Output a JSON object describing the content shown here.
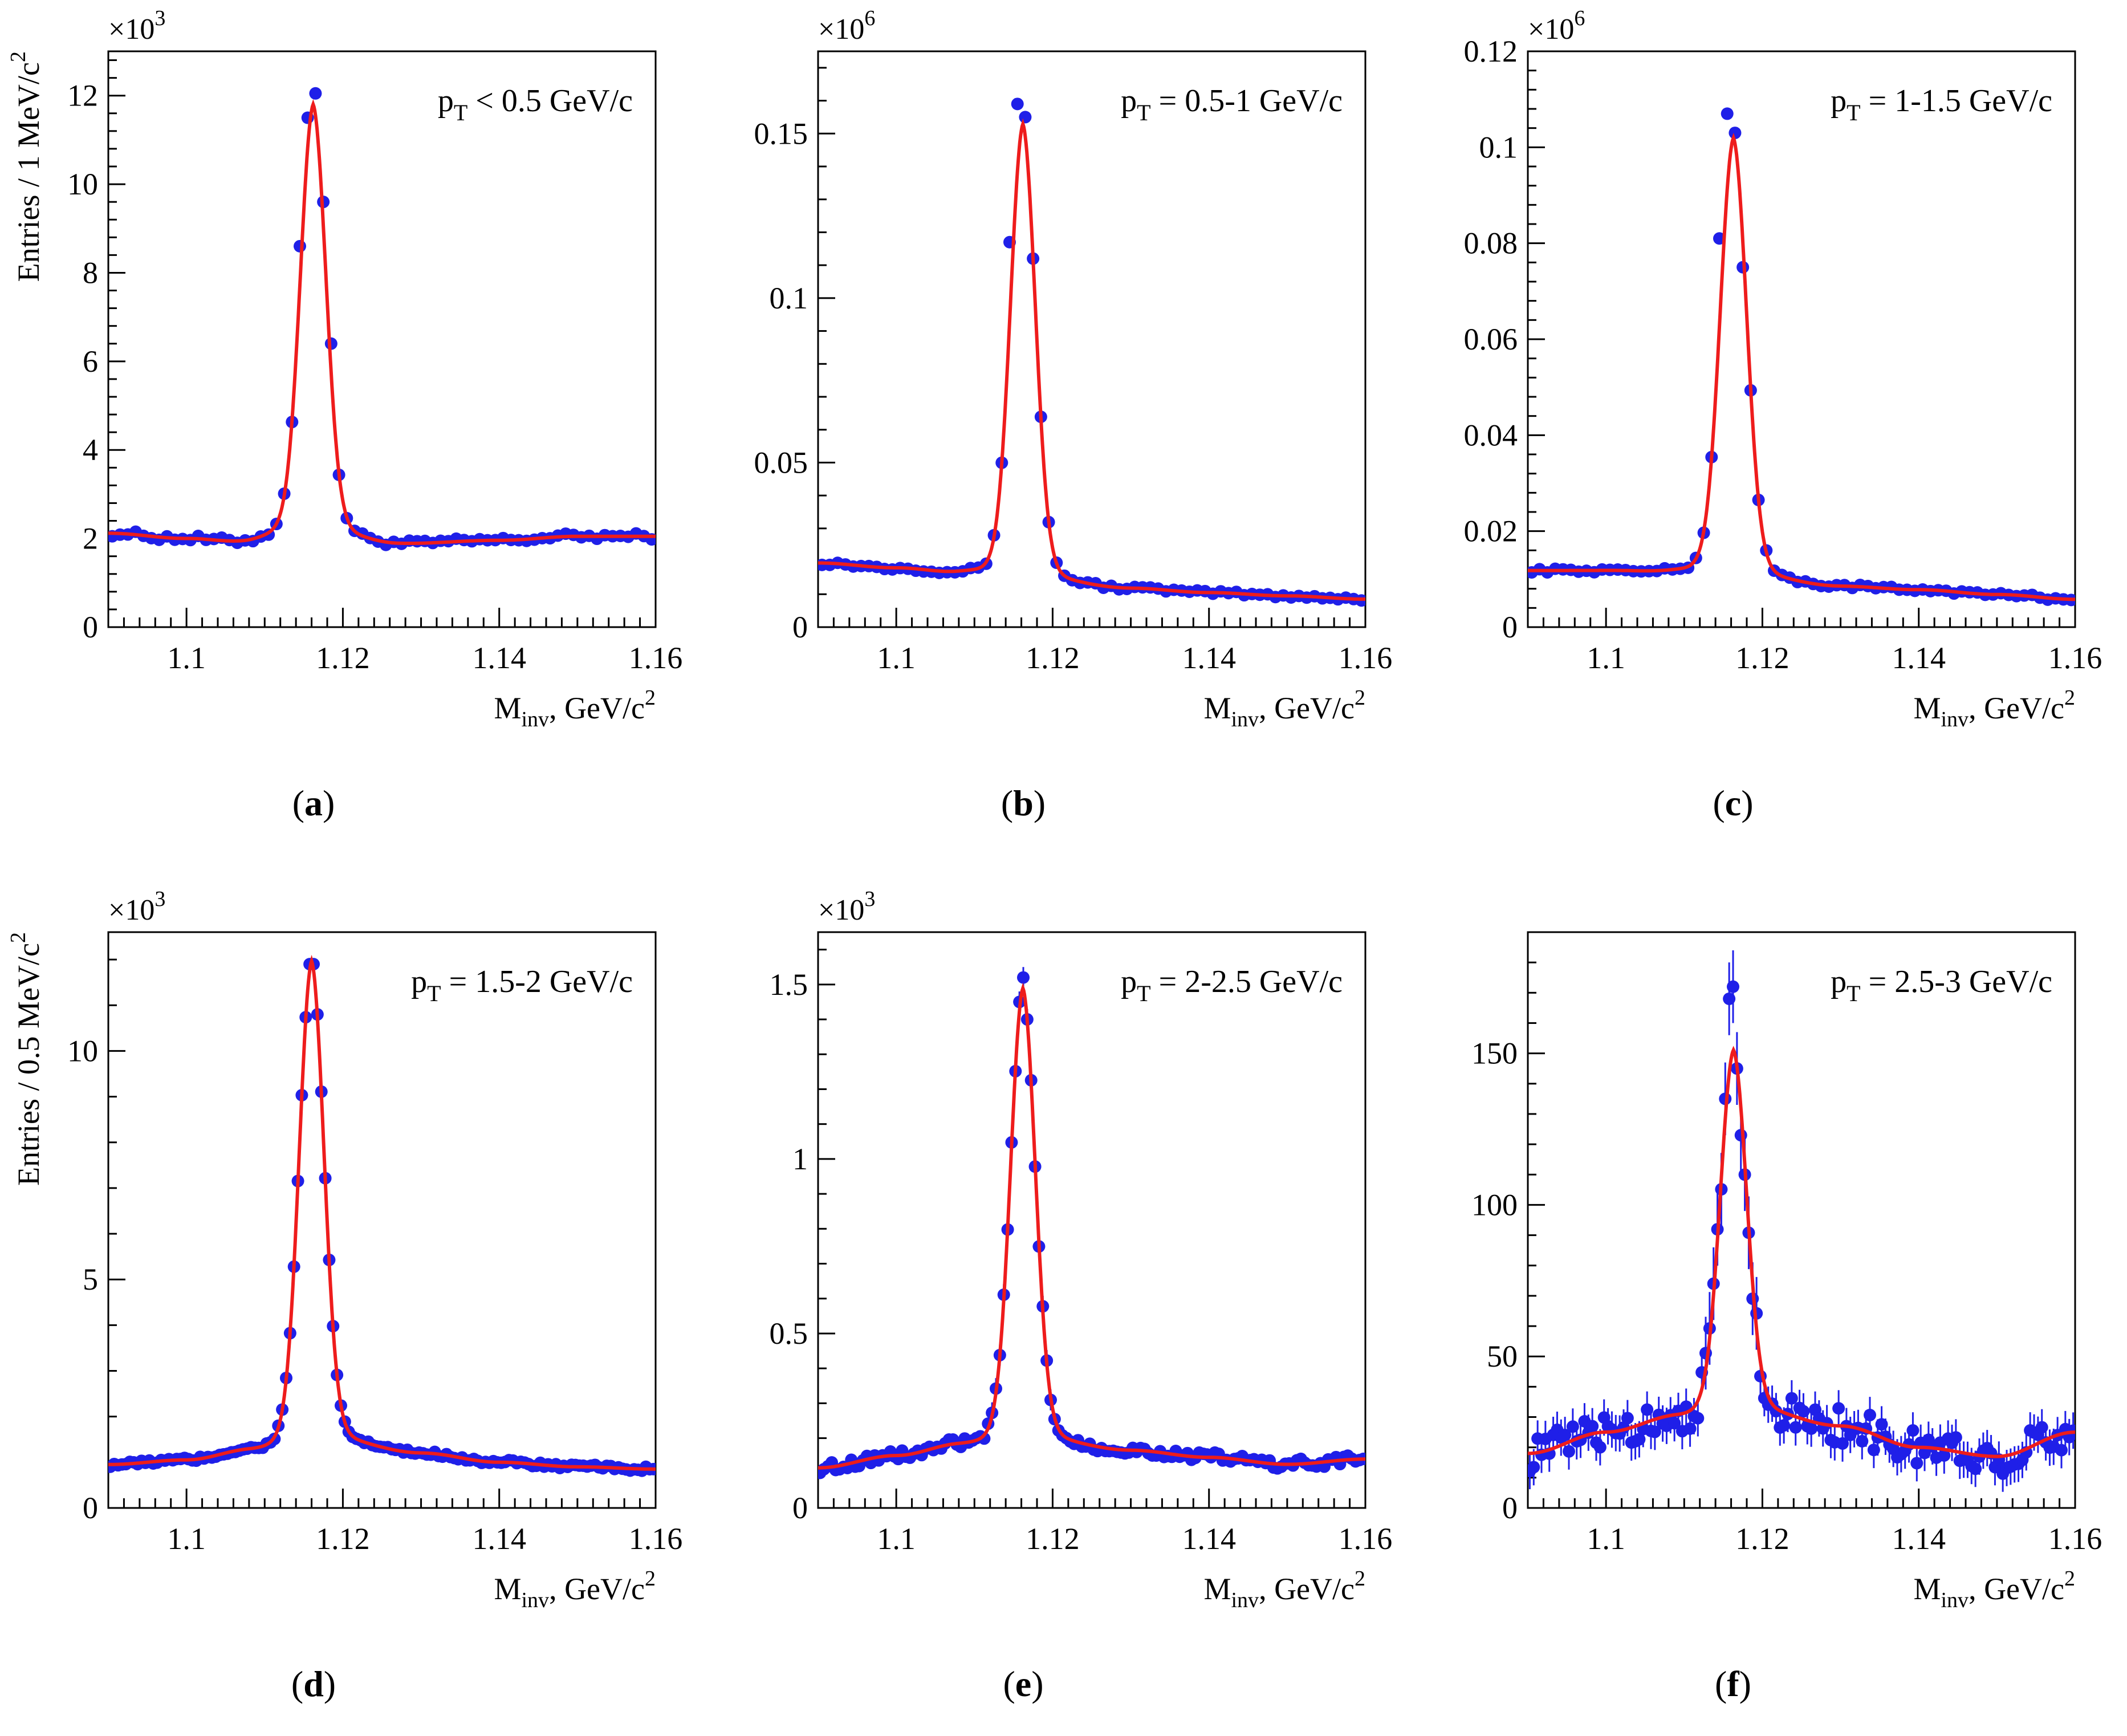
{
  "figure": {
    "captions": [
      "(a)",
      "(b)",
      "(c)",
      "(d)",
      "(e)",
      "(f)"
    ]
  },
  "colors": {
    "data": "#1f1fe8",
    "fit": "#ee1c1c",
    "axis": "#000000"
  },
  "chart_data": [
    {
      "id": "a",
      "type": "scatter",
      "caption": "(a)",
      "title": "p_T < 0.5 GeV/c",
      "pt_label": {
        "p": "p",
        "sub": "T",
        "rest": " < 0.5 GeV/c"
      },
      "xlabel": {
        "main": "M",
        "sub": "inv",
        "rest": ", GeV/c",
        "sup": "2"
      },
      "ylabel": "Entries / 1 MeV/c",
      "ylabel_sup": "2",
      "multiplier": {
        "base": "×10",
        "exp": "3"
      },
      "xlim": [
        1.09,
        1.16
      ],
      "ylim": [
        0,
        13
      ],
      "xticks": [
        1.1,
        1.12,
        1.14,
        1.16
      ],
      "xtick_labels": [
        "1.1",
        "1.12",
        "1.14",
        "1.16"
      ],
      "yticks": [
        0,
        2,
        4,
        6,
        8,
        10,
        12
      ],
      "ytick_labels": [
        "0",
        "2",
        "4",
        "6",
        "8",
        "10",
        "12"
      ],
      "model": {
        "mu": 1.1162,
        "sigma": 0.00165,
        "amp": 9.6,
        "bg": [
          [
            1.09,
            2.12
          ],
          [
            1.1,
            2.0
          ],
          [
            1.107,
            1.92
          ],
          [
            1.112,
            2.02
          ],
          [
            1.12,
            2.0
          ],
          [
            1.127,
            1.88
          ],
          [
            1.14,
            1.96
          ],
          [
            1.15,
            2.05
          ],
          [
            1.16,
            2.05
          ]
        ],
        "noise": 0.07,
        "err": 0.05,
        "binwidth": 0.001
      },
      "peak_points": [
        [
          1.114,
          8.6
        ],
        [
          1.115,
          11.5
        ],
        [
          1.116,
          12.05
        ],
        [
          1.117,
          9.6
        ],
        [
          1.118,
          6.4
        ]
      ]
    },
    {
      "id": "b",
      "type": "scatter",
      "caption": "(b)",
      "title": "p_T = 0.5-1 GeV/c",
      "pt_label": {
        "p": "p",
        "sub": "T",
        "rest": " = 0.5-1 GeV/c"
      },
      "xlabel": {
        "main": "M",
        "sub": "inv",
        "rest": ", GeV/c",
        "sup": "2"
      },
      "ylabel": "",
      "ylabel_sup": "",
      "multiplier": {
        "base": "×10",
        "exp": "6"
      },
      "xlim": [
        1.09,
        1.16
      ],
      "ylim": [
        0,
        0.175
      ],
      "xticks": [
        1.1,
        1.12,
        1.14,
        1.16
      ],
      "xtick_labels": [
        "1.1",
        "1.12",
        "1.14",
        "1.16"
      ],
      "yticks": [
        0,
        0.05,
        0.1,
        0.15
      ],
      "ytick_labels": [
        "0",
        "0.05",
        "0.1",
        "0.15"
      ],
      "model": {
        "mu": 1.1162,
        "sigma": 0.0016,
        "amp": 0.136,
        "bg": [
          [
            1.09,
            0.0195
          ],
          [
            1.1,
            0.018
          ],
          [
            1.108,
            0.0165
          ],
          [
            1.12,
            0.0135
          ],
          [
            1.13,
            0.0118
          ],
          [
            1.14,
            0.0105
          ],
          [
            1.15,
            0.0095
          ],
          [
            1.16,
            0.0085
          ]
        ],
        "noise": 0.0006,
        "err": 0.0004,
        "binwidth": 0.001
      },
      "peak_points": [
        [
          1.115,
          0.159
        ],
        [
          1.116,
          0.155
        ],
        [
          1.117,
          0.112
        ],
        [
          1.114,
          0.117
        ]
      ]
    },
    {
      "id": "c",
      "type": "scatter",
      "caption": "(c)",
      "title": "p_T = 1-1.5 GeV/c",
      "pt_label": {
        "p": "p",
        "sub": "T",
        "rest": " = 1-1.5 GeV/c"
      },
      "xlabel": {
        "main": "M",
        "sub": "inv",
        "rest": ", GeV/c",
        "sup": "2"
      },
      "ylabel": "",
      "ylabel_sup": "",
      "multiplier": {
        "base": "×10",
        "exp": "6"
      },
      "xlim": [
        1.09,
        1.16
      ],
      "ylim": [
        0,
        0.12
      ],
      "xticks": [
        1.1,
        1.12,
        1.14,
        1.16
      ],
      "xtick_labels": [
        "1.1",
        "1.12",
        "1.14",
        "1.16"
      ],
      "yticks": [
        0,
        0.02,
        0.04,
        0.06,
        0.08,
        0.1,
        0.12
      ],
      "ytick_labels": [
        "0",
        "0.02",
        "0.04",
        "0.06",
        "0.08",
        "0.1",
        "0.12"
      ],
      "model": {
        "mu": 1.1163,
        "sigma": 0.0017,
        "amp": 0.09,
        "bg": [
          [
            1.09,
            0.0118
          ],
          [
            1.1,
            0.0118
          ],
          [
            1.108,
            0.0115
          ],
          [
            1.12,
            0.0098
          ],
          [
            1.13,
            0.0085
          ],
          [
            1.14,
            0.0078
          ],
          [
            1.15,
            0.0068
          ],
          [
            1.16,
            0.0058
          ]
        ],
        "noise": 0.0004,
        "err": 0.0003,
        "binwidth": 0.001
      },
      "peak_points": [
        [
          1.115,
          0.107
        ],
        [
          1.116,
          0.103
        ],
        [
          1.117,
          0.075
        ],
        [
          1.114,
          0.081
        ]
      ]
    },
    {
      "id": "d",
      "type": "scatter",
      "caption": "(d)",
      "title": "p_T = 1.5-2 GeV/c",
      "pt_label": {
        "p": "p",
        "sub": "T",
        "rest": " = 1.5-2 GeV/c"
      },
      "xlabel": {
        "main": "M",
        "sub": "inv",
        "rest": ", GeV/c",
        "sup": "2"
      },
      "ylabel": "Entries / 0.5 MeV/c",
      "ylabel_sup": "2",
      "multiplier": {
        "base": "×10",
        "exp": "3"
      },
      "xlim": [
        1.09,
        1.16
      ],
      "ylim": [
        0,
        12.6
      ],
      "xticks": [
        1.1,
        1.12,
        1.14,
        1.16
      ],
      "xtick_labels": [
        "1.1",
        "1.12",
        "1.14",
        "1.16"
      ],
      "yticks": [
        0,
        5,
        10
      ],
      "ytick_labels": [
        "0",
        "5",
        "10"
      ],
      "model": {
        "mu": 1.116,
        "sigma": 0.0016,
        "amp": 10.4,
        "bg": [
          [
            1.09,
            0.95
          ],
          [
            1.1,
            1.05
          ],
          [
            1.108,
            1.25
          ],
          [
            1.12,
            1.4
          ],
          [
            1.13,
            1.2
          ],
          [
            1.14,
            1.0
          ],
          [
            1.15,
            0.9
          ],
          [
            1.16,
            0.85
          ]
        ],
        "noise": 0.05,
        "err": 0.05,
        "binwidth": 0.0005
      },
      "peak_points": [
        [
          1.1155,
          11.9
        ],
        [
          1.116,
          11.9
        ],
        [
          1.1165,
          10.8
        ]
      ]
    },
    {
      "id": "e",
      "type": "scatter",
      "caption": "(e)",
      "title": "p_T = 2-2.5 GeV/c",
      "pt_label": {
        "p": "p",
        "sub": "T",
        "rest": " = 2-2.5 GeV/c"
      },
      "xlabel": {
        "main": "M",
        "sub": "inv",
        "rest": ", GeV/c",
        "sup": "2"
      },
      "ylabel": "",
      "ylabel_sup": "",
      "multiplier": {
        "base": "×10",
        "exp": "3"
      },
      "xlim": [
        1.09,
        1.16
      ],
      "ylim": [
        0,
        1.65
      ],
      "xticks": [
        1.1,
        1.12,
        1.14,
        1.16
      ],
      "xtick_labels": [
        "1.1",
        "1.12",
        "1.14",
        "1.16"
      ],
      "yticks": [
        0,
        0.5,
        1,
        1.5
      ],
      "ytick_labels": [
        "0",
        "0.5",
        "1",
        "1.5"
      ],
      "model": {
        "mu": 1.1162,
        "sigma": 0.0016,
        "amp": 1.28,
        "bg": [
          [
            1.09,
            0.115
          ],
          [
            1.1,
            0.15
          ],
          [
            1.108,
            0.18
          ],
          [
            1.12,
            0.185
          ],
          [
            1.13,
            0.165
          ],
          [
            1.14,
            0.145
          ],
          [
            1.15,
            0.125
          ],
          [
            1.16,
            0.14
          ]
        ],
        "noise": 0.015,
        "err": 0.015,
        "binwidth": 0.0005
      },
      "peak_points": [
        [
          1.116,
          1.52
        ],
        [
          1.1155,
          1.45
        ],
        [
          1.1165,
          1.4
        ]
      ]
    },
    {
      "id": "f",
      "type": "scatter",
      "caption": "(f)",
      "title": "p_T = 2.5-3 GeV/c",
      "pt_label": {
        "p": "p",
        "sub": "T",
        "rest": " = 2.5-3 GeV/c"
      },
      "xlabel": {
        "main": "M",
        "sub": "inv",
        "rest": ", GeV/c",
        "sup": "2"
      },
      "ylabel": "",
      "ylabel_sup": "",
      "multiplier": {
        "base": "",
        "exp": ""
      },
      "xlim": [
        1.09,
        1.16
      ],
      "ylim": [
        0,
        190
      ],
      "xticks": [
        1.1,
        1.12,
        1.14,
        1.16
      ],
      "xtick_labels": [
        "1.1",
        "1.12",
        "1.14",
        "1.16"
      ],
      "yticks": [
        0,
        50,
        100,
        150
      ],
      "ytick_labels": [
        "0",
        "50",
        "100",
        "150"
      ],
      "model": {
        "mu": 1.1163,
        "sigma": 0.0017,
        "amp": 118,
        "bg": [
          [
            1.09,
            18
          ],
          [
            1.1,
            25
          ],
          [
            1.109,
            30
          ],
          [
            1.12,
            31
          ],
          [
            1.13,
            27
          ],
          [
            1.14,
            20
          ],
          [
            1.15,
            17
          ],
          [
            1.16,
            25
          ]
        ],
        "noise": 6,
        "err": 6,
        "binwidth": 0.0005
      },
      "peak_points": [
        [
          1.1155,
          168
        ],
        [
          1.116,
          172
        ],
        [
          1.1165,
          145
        ],
        [
          1.117,
          123
        ],
        [
          1.115,
          135
        ]
      ]
    }
  ]
}
